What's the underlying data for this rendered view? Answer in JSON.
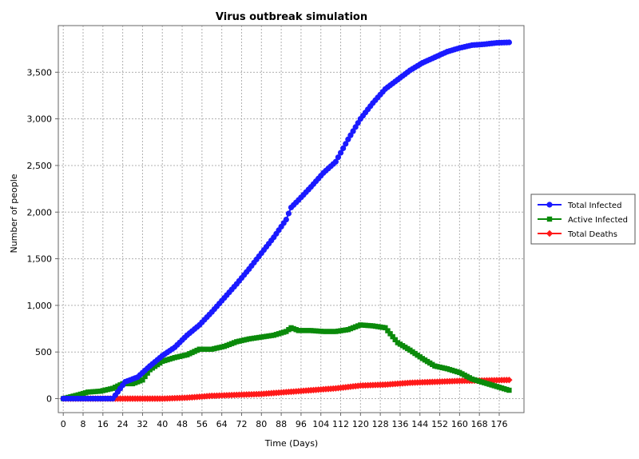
{
  "chart_data": {
    "type": "line",
    "title": "Virus outbreak simulation",
    "xlabel": "Time (Days)",
    "ylabel": "Number of people",
    "xlim": [
      -2,
      186
    ],
    "ylim": [
      -150,
      4000
    ],
    "xticks": [
      0,
      8,
      16,
      24,
      32,
      40,
      48,
      56,
      64,
      72,
      80,
      88,
      96,
      104,
      112,
      120,
      128,
      136,
      144,
      152,
      160,
      168,
      176
    ],
    "yticks": [
      0,
      500,
      1000,
      1500,
      2000,
      2500,
      3000,
      3500
    ],
    "ytick_labels": [
      "0",
      "500",
      "1,000",
      "1,500",
      "2,000",
      "2,500",
      "3,000",
      "3,500"
    ],
    "grid": true,
    "legend_position": "right",
    "series": [
      {
        "name": "Total Infected",
        "color": "#1a1aff",
        "marker": "circle",
        "points": [
          [
            0,
            0
          ],
          [
            6,
            0
          ],
          [
            10,
            0
          ],
          [
            20,
            0
          ],
          [
            25,
            180
          ],
          [
            30,
            230
          ],
          [
            35,
            350
          ],
          [
            40,
            460
          ],
          [
            45,
            550
          ],
          [
            50,
            680
          ],
          [
            55,
            790
          ],
          [
            60,
            930
          ],
          [
            65,
            1080
          ],
          [
            70,
            1230
          ],
          [
            75,
            1390
          ],
          [
            80,
            1560
          ],
          [
            85,
            1730
          ],
          [
            90,
            1920
          ],
          [
            92,
            2050
          ],
          [
            95,
            2130
          ],
          [
            100,
            2270
          ],
          [
            105,
            2420
          ],
          [
            110,
            2540
          ],
          [
            115,
            2780
          ],
          [
            120,
            3000
          ],
          [
            125,
            3170
          ],
          [
            130,
            3320
          ],
          [
            135,
            3420
          ],
          [
            140,
            3520
          ],
          [
            145,
            3600
          ],
          [
            150,
            3660
          ],
          [
            155,
            3720
          ],
          [
            160,
            3760
          ],
          [
            165,
            3790
          ],
          [
            170,
            3800
          ],
          [
            175,
            3815
          ],
          [
            180,
            3820
          ]
        ]
      },
      {
        "name": "Active Infected",
        "color": "#0a8a0a",
        "marker": "square",
        "points": [
          [
            0,
            0
          ],
          [
            6,
            40
          ],
          [
            10,
            70
          ],
          [
            15,
            80
          ],
          [
            20,
            110
          ],
          [
            24,
            160
          ],
          [
            28,
            160
          ],
          [
            32,
            200
          ],
          [
            35,
            310
          ],
          [
            40,
            400
          ],
          [
            45,
            440
          ],
          [
            50,
            470
          ],
          [
            55,
            530
          ],
          [
            60,
            530
          ],
          [
            65,
            560
          ],
          [
            70,
            610
          ],
          [
            75,
            640
          ],
          [
            80,
            660
          ],
          [
            85,
            680
          ],
          [
            90,
            720
          ],
          [
            92,
            760
          ],
          [
            95,
            730
          ],
          [
            100,
            730
          ],
          [
            105,
            720
          ],
          [
            110,
            720
          ],
          [
            115,
            740
          ],
          [
            120,
            790
          ],
          [
            125,
            780
          ],
          [
            130,
            760
          ],
          [
            135,
            600
          ],
          [
            140,
            520
          ],
          [
            145,
            430
          ],
          [
            150,
            350
          ],
          [
            155,
            320
          ],
          [
            160,
            280
          ],
          [
            165,
            210
          ],
          [
            170,
            170
          ],
          [
            175,
            130
          ],
          [
            180,
            90
          ]
        ]
      },
      {
        "name": "Total Deaths",
        "color": "#ff1a1a",
        "marker": "diamond",
        "points": [
          [
            0,
            0
          ],
          [
            40,
            0
          ],
          [
            50,
            10
          ],
          [
            60,
            30
          ],
          [
            70,
            40
          ],
          [
            80,
            50
          ],
          [
            90,
            70
          ],
          [
            100,
            90
          ],
          [
            110,
            110
          ],
          [
            120,
            140
          ],
          [
            130,
            150
          ],
          [
            140,
            170
          ],
          [
            150,
            180
          ],
          [
            160,
            190
          ],
          [
            170,
            195
          ],
          [
            180,
            200
          ]
        ]
      }
    ]
  }
}
